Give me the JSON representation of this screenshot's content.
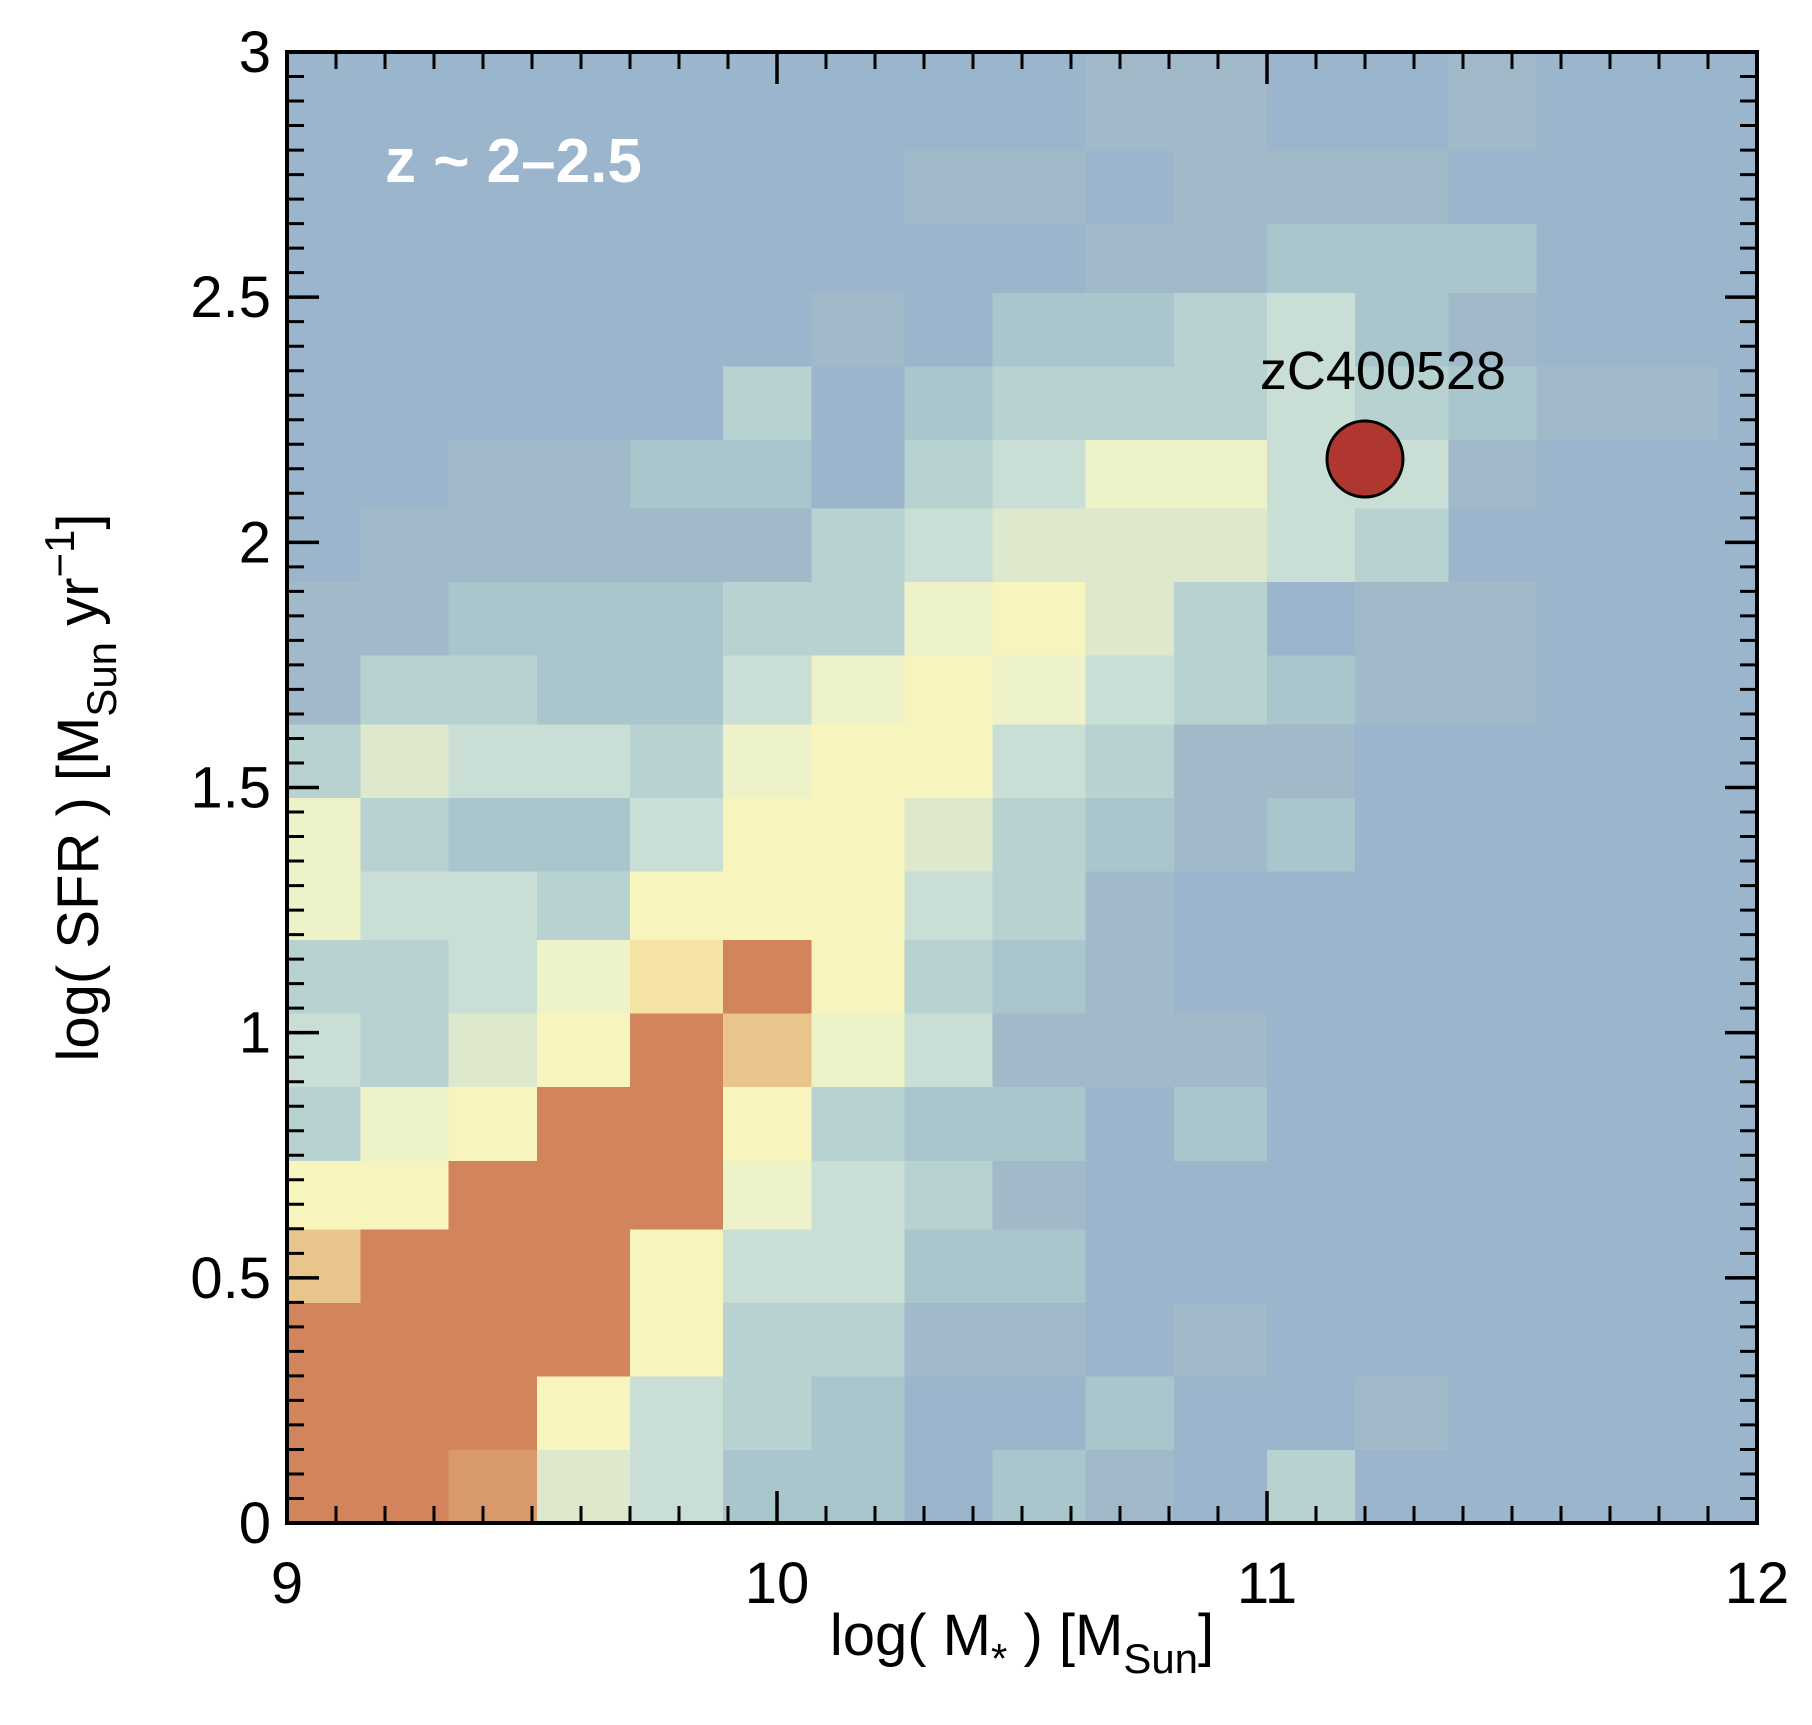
{
  "chart_data": {
    "type": "hist2d",
    "annotation": "z ~ 2–2.5",
    "xlabel": [
      {
        "text": "log( M"
      },
      {
        "text": "*",
        "shift": "sub"
      },
      {
        "text": " ) [M"
      },
      {
        "text": "Sun",
        "shift": "sub"
      },
      {
        "text": "]"
      }
    ],
    "ylabel": [
      {
        "text": "log( SFR ) [M"
      },
      {
        "text": "Sun",
        "shift": "sub"
      },
      {
        "text": " yr"
      },
      {
        "text": "−1",
        "shift": "super"
      },
      {
        "text": "]"
      }
    ],
    "xlim": [
      9,
      12
    ],
    "ylim": [
      0,
      3
    ],
    "xticks": [
      9,
      10,
      11,
      12
    ],
    "yticks": [
      0,
      0.5,
      1,
      1.5,
      2,
      2.5,
      3
    ],
    "xminor_step": 0.1,
    "yminor_step": 0.05,
    "xedges": [
      9,
      9.15,
      9.33,
      9.51,
      9.7,
      9.89,
      10.07,
      10.26,
      10.44,
      10.63,
      10.81,
      11.0,
      11.18,
      11.37,
      11.55,
      11.74,
      11.92,
      12
    ],
    "yedges": [
      0,
      0.15,
      0.3,
      0.45,
      0.6,
      0.74,
      0.89,
      1.04,
      1.19,
      1.33,
      1.48,
      1.63,
      1.77,
      1.92,
      2.07,
      2.21,
      2.36,
      2.51,
      2.65,
      2.8,
      2.95,
      3
    ],
    "palette": [
      "#9bb6cc",
      "#a2b9c9",
      "#a9c6cd",
      "#b7d2d1",
      "#c9ded4",
      "#dde8cd",
      "#eef2c9",
      "#f8f4bd",
      "#f5e3a5",
      "#e9c48b",
      "#d99a6b",
      "#d2845d"
    ],
    "levels": [
      [
        11,
        11,
        10,
        5,
        4,
        2,
        2,
        0,
        2,
        1,
        0,
        3,
        0,
        0,
        0,
        0,
        0
      ],
      [
        11,
        11,
        11,
        7,
        4,
        3,
        2,
        0,
        0,
        2,
        0,
        0,
        1,
        0,
        0,
        0,
        0
      ],
      [
        11,
        11,
        11,
        11,
        7,
        3,
        3,
        1,
        1,
        0,
        1,
        0,
        0,
        0,
        0,
        0,
        0
      ],
      [
        9,
        11,
        11,
        11,
        7,
        4,
        4,
        2,
        2,
        0,
        0,
        0,
        0,
        0,
        0,
        0,
        0
      ],
      [
        7,
        7,
        11,
        11,
        11,
        6,
        4,
        3,
        1,
        0,
        0,
        0,
        0,
        0,
        0,
        0,
        0
      ],
      [
        3,
        6,
        7,
        11,
        11,
        7,
        3,
        2,
        2,
        0,
        2,
        0,
        0,
        0,
        0,
        0,
        0
      ],
      [
        4,
        3,
        5,
        7,
        11,
        9,
        6,
        4,
        1,
        1,
        1,
        0,
        0,
        0,
        0,
        0,
        0
      ],
      [
        3,
        3,
        4,
        6,
        8,
        11,
        7,
        3,
        2,
        1,
        0,
        0,
        0,
        0,
        0,
        0,
        0
      ],
      [
        6,
        4,
        4,
        3,
        7,
        7,
        7,
        4,
        3,
        1,
        0,
        0,
        0,
        0,
        0,
        0,
        0
      ],
      [
        6,
        3,
        2,
        2,
        4,
        7,
        7,
        5,
        3,
        2,
        1,
        2,
        0,
        0,
        0,
        0,
        0
      ],
      [
        3,
        5,
        4,
        4,
        3,
        6,
        7,
        7,
        4,
        3,
        1,
        1,
        0,
        0,
        0,
        0,
        0
      ],
      [
        1,
        3,
        3,
        2,
        2,
        4,
        6,
        7,
        6,
        4,
        3,
        2,
        1,
        1,
        0,
        0,
        0
      ],
      [
        1,
        1,
        2,
        2,
        2,
        3,
        3,
        6,
        7,
        5,
        3,
        0,
        1,
        1,
        0,
        0,
        0
      ],
      [
        0,
        1,
        1,
        1,
        1,
        1,
        3,
        4,
        5,
        5,
        5,
        4,
        3,
        0,
        0,
        0,
        0
      ],
      [
        0,
        0,
        1,
        1,
        2,
        2,
        0,
        3,
        4,
        6,
        6,
        4,
        4,
        1,
        0,
        0,
        0
      ],
      [
        0,
        0,
        0,
        0,
        0,
        3,
        0,
        2,
        3,
        3,
        3,
        4,
        3,
        2,
        1,
        1,
        0
      ],
      [
        0,
        0,
        0,
        0,
        0,
        0,
        1,
        0,
        2,
        2,
        3,
        4,
        2,
        1,
        0,
        0,
        0
      ],
      [
        0,
        0,
        0,
        0,
        0,
        0,
        0,
        0,
        0,
        1,
        1,
        2,
        2,
        2,
        0,
        0,
        0
      ],
      [
        0,
        0,
        0,
        0,
        0,
        0,
        0,
        1,
        1,
        0,
        1,
        1,
        1,
        0,
        0,
        0,
        0
      ],
      [
        0,
        0,
        0,
        0,
        0,
        0,
        0,
        0,
        0,
        1,
        1,
        0,
        0,
        1,
        0,
        0,
        0
      ],
      [
        0,
        0,
        0,
        0,
        0,
        0,
        0,
        0,
        0,
        1,
        1,
        0,
        0,
        1,
        0,
        0,
        0
      ]
    ],
    "points": [
      {
        "name": "zC400528",
        "x": 11.2,
        "y": 2.17,
        "color": "#b0372f"
      }
    ]
  }
}
